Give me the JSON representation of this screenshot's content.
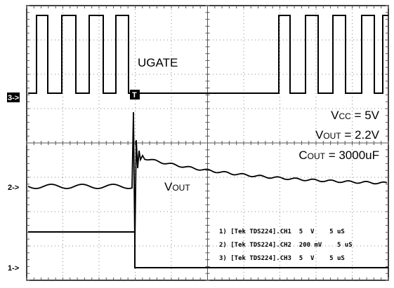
{
  "markers": {
    "ch3": "3->",
    "ch2": "2->",
    "ch1": "1->",
    "trigger": "T"
  },
  "labels": {
    "ugate": "UGATE",
    "vout_trace": {
      "main": "V",
      "sub": "OUT"
    },
    "vcc": {
      "main": "V",
      "sub": "CC",
      "rest": " = 5V"
    },
    "vout": {
      "main": "V",
      "sub": "OUT",
      "rest": " = 2.2V"
    },
    "cout": {
      "main": "C",
      "sub": "OUT",
      "rest": " = 3000uF"
    }
  },
  "legend": [
    "1) [Tek TDS224].CH1  5  V    5 uS",
    "2) [Tek TDS224].CH2  200 mV    5 uS",
    "3) [Tek TDS224].CH3  5  V    5 uS"
  ]
}
